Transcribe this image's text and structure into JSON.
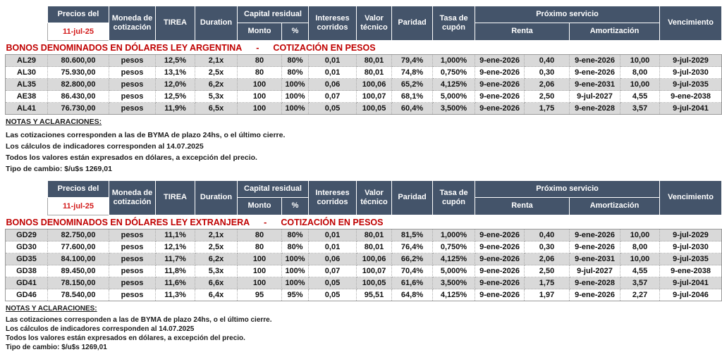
{
  "colors": {
    "header_bg": "#44546A",
    "header_text": "#FFFFFF",
    "date_red": "#D31A1A",
    "title_red": "#C00000",
    "row_stripe": "#D9D9D9",
    "row_white": "#FFFFFF"
  },
  "header": {
    "precios_del": "Precios del",
    "date": "11-jul-25",
    "moneda": "Moneda de cotización",
    "tirea": "TIREA",
    "duration": "Duration",
    "capital_residual": "Capital residual",
    "monto": "Monto",
    "pct": "%",
    "intereses": "Intereses corridos",
    "valor_tecnico": "Valor técnico",
    "paridad": "Paridad",
    "tasa_cupon": "Tasa de cupón",
    "proximo_servicio": "Próximo servicio",
    "renta": "Renta",
    "amortizacion": "Amortización",
    "vencimiento": "Vencimiento"
  },
  "sections": [
    {
      "title_left": "BONOS DENOMINADOS EN DÓLARES LEY ARGENTINA",
      "title_sep": "-",
      "title_right": "COTIZACIÓN EN PESOS",
      "rows": [
        [
          "AL29",
          "80.600,00",
          "pesos",
          "12,5%",
          "2,1x",
          "80",
          "80%",
          "0,01",
          "80,01",
          "79,4%",
          "1,000%",
          "9-ene-2026",
          "0,40",
          "9-ene-2026",
          "10,00",
          "9-jul-2029"
        ],
        [
          "AL30",
          "75.930,00",
          "pesos",
          "13,1%",
          "2,5x",
          "80",
          "80%",
          "0,01",
          "80,01",
          "74,8%",
          "0,750%",
          "9-ene-2026",
          "0,30",
          "9-ene-2026",
          "8,00",
          "9-jul-2030"
        ],
        [
          "AL35",
          "82.800,00",
          "pesos",
          "12,0%",
          "6,2x",
          "100",
          "100%",
          "0,06",
          "100,06",
          "65,2%",
          "4,125%",
          "9-ene-2026",
          "2,06",
          "9-ene-2031",
          "10,00",
          "9-jul-2035"
        ],
        [
          "AE38",
          "86.430,00",
          "pesos",
          "12,5%",
          "5,3x",
          "100",
          "100%",
          "0,07",
          "100,07",
          "68,1%",
          "5,000%",
          "9-ene-2026",
          "2,50",
          "9-jul-2027",
          "4,55",
          "9-ene-2038"
        ],
        [
          "AL41",
          "76.730,00",
          "pesos",
          "11,9%",
          "6,5x",
          "100",
          "100%",
          "0,05",
          "100,05",
          "60,4%",
          "3,500%",
          "9-ene-2026",
          "1,75",
          "9-ene-2028",
          "3,57",
          "9-jul-2041"
        ]
      ]
    },
    {
      "title_left": "BONOS DENOMINADOS EN DÓLARES LEY EXTRANJERA",
      "title_sep": "-",
      "title_right": "COTIZACIÓN EN PESOS",
      "rows": [
        [
          "GD29",
          "82.750,00",
          "pesos",
          "11,1%",
          "2,1x",
          "80",
          "80%",
          "0,01",
          "80,01",
          "81,5%",
          "1,000%",
          "9-ene-2026",
          "0,40",
          "9-ene-2026",
          "10,00",
          "9-jul-2029"
        ],
        [
          "GD30",
          "77.600,00",
          "pesos",
          "12,1%",
          "2,5x",
          "80",
          "80%",
          "0,01",
          "80,01",
          "76,4%",
          "0,750%",
          "9-ene-2026",
          "0,30",
          "9-ene-2026",
          "8,00",
          "9-jul-2030"
        ],
        [
          "GD35",
          "84.100,00",
          "pesos",
          "11,7%",
          "6,2x",
          "100",
          "100%",
          "0,06",
          "100,06",
          "66,2%",
          "4,125%",
          "9-ene-2026",
          "2,06",
          "9-ene-2031",
          "10,00",
          "9-jul-2035"
        ],
        [
          "GD38",
          "89.450,00",
          "pesos",
          "11,8%",
          "5,3x",
          "100",
          "100%",
          "0,07",
          "100,07",
          "70,4%",
          "5,000%",
          "9-ene-2026",
          "2,50",
          "9-jul-2027",
          "4,55",
          "9-ene-2038"
        ],
        [
          "GD41",
          "78.150,00",
          "pesos",
          "11,6%",
          "6,6x",
          "100",
          "100%",
          "0,05",
          "100,05",
          "61,6%",
          "3,500%",
          "9-ene-2026",
          "1,75",
          "9-ene-2028",
          "3,57",
          "9-jul-2041"
        ],
        [
          "GD46",
          "78.540,00",
          "pesos",
          "11,3%",
          "6,4x",
          "95",
          "95%",
          "0,05",
          "95,51",
          "64,8%",
          "4,125%",
          "9-ene-2026",
          "1,97",
          "9-ene-2026",
          "2,27",
          "9-jul-2046"
        ]
      ]
    }
  ],
  "notes": {
    "heading": "NOTAS Y ACLARACIONES:",
    "lines": [
      "Las cotizaciones corresponden a las de BYMA de plazo 24hs, o el último cierre.",
      "Los cálculos de indicadores corresponden al 14.07.2025",
      "Todos los valores están expresados en dólares, a excepción del precio.",
      "Tipo de cambio: $/u$s 1269,01"
    ]
  }
}
